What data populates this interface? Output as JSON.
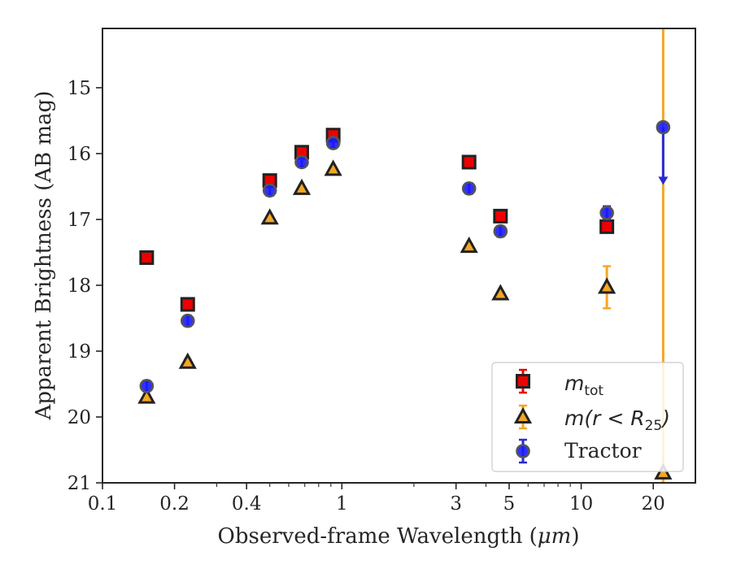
{
  "chart_data": {
    "type": "scatter",
    "title": "",
    "xlabel_text": "Observed-frame Wavelength (",
    "xlabel_unit": "μm",
    "xlabel_close": ")",
    "ylabel": "Apparent Brightness (AB mag)",
    "xscale": "log",
    "xlim": [
      0.1,
      30
    ],
    "ylim": [
      21,
      14.1
    ],
    "y_inverted": true,
    "x_ticks": [
      {
        "value": 0.1,
        "label": "0.1"
      },
      {
        "value": 0.2,
        "label": "0.2"
      },
      {
        "value": 0.4,
        "label": "0.4"
      },
      {
        "value": 1,
        "label": "1"
      },
      {
        "value": 3,
        "label": "3"
      },
      {
        "value": 5,
        "label": "5"
      },
      {
        "value": 10,
        "label": "10"
      },
      {
        "value": 20,
        "label": "20"
      }
    ],
    "y_ticks": [
      {
        "value": 15,
        "label": "15"
      },
      {
        "value": 16,
        "label": "16"
      },
      {
        "value": 17,
        "label": "17"
      },
      {
        "value": 18,
        "label": "18"
      },
      {
        "value": 19,
        "label": "19"
      },
      {
        "value": 20,
        "label": "20"
      },
      {
        "value": 21,
        "label": "21"
      }
    ],
    "legend_position": "lower-right",
    "series": [
      {
        "key": "mtot",
        "legend_main": "m",
        "legend_sub": "tot",
        "marker": "square",
        "fill": "#ee0000",
        "edge": "#222222",
        "error_color": "#ee0000",
        "points": [
          {
            "x": 0.153,
            "y": 17.58,
            "err": 0.04
          },
          {
            "x": 0.227,
            "y": 18.29,
            "err": 0.04
          },
          {
            "x": 0.5,
            "y": 16.41,
            "err": 0.02
          },
          {
            "x": 0.68,
            "y": 15.98,
            "err": 0.02
          },
          {
            "x": 0.92,
            "y": 15.72,
            "err": 0.02
          },
          {
            "x": 3.4,
            "y": 16.13,
            "err": 0.03
          },
          {
            "x": 4.6,
            "y": 16.95,
            "err": 0.03
          },
          {
            "x": 12.8,
            "y": 17.11,
            "err": 0.05
          }
        ]
      },
      {
        "key": "mr25",
        "legend_main": "m",
        "legend_paren": "(r < R",
        "legend_sub": "25",
        "legend_close": ")",
        "marker": "triangle",
        "fill": "#f5a623",
        "edge": "#222222",
        "error_color": "#f5a623",
        "points": [
          {
            "x": 0.153,
            "y": 19.7,
            "err": 0.04
          },
          {
            "x": 0.227,
            "y": 19.17,
            "err": 0.04
          },
          {
            "x": 0.5,
            "y": 16.98,
            "err": 0.02
          },
          {
            "x": 0.68,
            "y": 16.53,
            "err": 0.02
          },
          {
            "x": 0.92,
            "y": 16.24,
            "err": 0.02
          },
          {
            "x": 3.4,
            "y": 17.41,
            "err": 0.03
          },
          {
            "x": 4.6,
            "y": 18.13,
            "err": 0.03
          },
          {
            "x": 12.8,
            "y": 18.03,
            "err": 0.32
          },
          {
            "x": 22.0,
            "y": 20.85,
            "err": 0,
            "vertical_error_span_full": true
          }
        ]
      },
      {
        "key": "tractor",
        "legend_main": "Tractor",
        "marker": "circle",
        "fill": "#1a1aff",
        "edge": "#555555",
        "error_color": "#2a2ad0",
        "points": [
          {
            "x": 0.153,
            "y": 19.53,
            "err": 0.08
          },
          {
            "x": 0.227,
            "y": 18.54,
            "err": 0.08
          },
          {
            "x": 0.5,
            "y": 16.56,
            "err": 0.08
          },
          {
            "x": 0.68,
            "y": 16.13,
            "err": 0.07
          },
          {
            "x": 0.92,
            "y": 15.84,
            "err": 0.07
          },
          {
            "x": 3.4,
            "y": 16.53,
            "err": 0.08
          },
          {
            "x": 4.6,
            "y": 17.18,
            "err": 0.08
          },
          {
            "x": 12.8,
            "y": 16.9,
            "err": 0.1
          },
          {
            "x": 22.0,
            "y": 15.6,
            "err": 0,
            "upper_limit_to": 16.45
          }
        ]
      }
    ]
  }
}
